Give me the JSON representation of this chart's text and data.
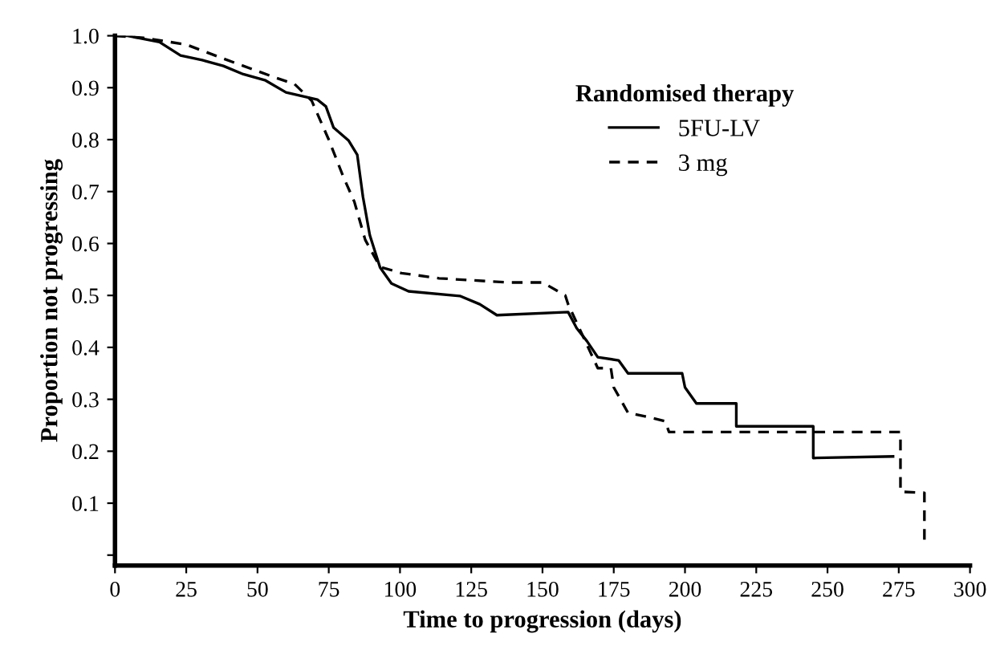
{
  "chart_data": {
    "type": "line",
    "xlabel": "Time to progression (days)",
    "ylabel": "Proportion not progressing",
    "legend_title": "Randomised therapy",
    "legend": "top right",
    "grid": false,
    "marker": "none",
    "xlim": [
      0,
      300
    ],
    "xticks": [
      0,
      25,
      50,
      75,
      100,
      125,
      150,
      175,
      200,
      225,
      250,
      275,
      300
    ],
    "ylim": [
      -0.02,
      1.0
    ],
    "yticks": [
      {
        "value": 0,
        "label": null
      },
      {
        "value": 0.1,
        "label": "0.1"
      },
      {
        "value": 0.2,
        "label": "0.2"
      },
      {
        "value": 0.3,
        "label": "0.3"
      },
      {
        "value": 0.4,
        "label": "0.4"
      },
      {
        "value": 0.5,
        "label": "0.5"
      },
      {
        "value": 0.6,
        "label": "0.6"
      },
      {
        "value": 0.7,
        "label": "0.7"
      },
      {
        "value": 0.8,
        "label": "0.8"
      },
      {
        "value": 0.9,
        "label": "0.9"
      },
      {
        "value": 1.0,
        "label": "1.0"
      }
    ],
    "series": [
      {
        "name": "5FU-LV",
        "color": "#000000",
        "line_style": "solid",
        "x": [
          0,
          4.4,
          15.6,
          23,
          30.6,
          38,
          45,
          52.8,
          60,
          71,
          74,
          76.7,
          82,
          85,
          87,
          89.4,
          93,
          97,
          103,
          121,
          128,
          134,
          159,
          162,
          165.6,
          169.4,
          176.7,
          180,
          199,
          200,
          204,
          218,
          218,
          245,
          245,
          273
        ],
        "values": [
          1.0,
          1.0,
          0.988,
          0.962,
          0.953,
          0.942,
          0.926,
          0.914,
          0.891,
          0.877,
          0.864,
          0.823,
          0.798,
          0.771,
          0.69,
          0.616,
          0.554,
          0.523,
          0.508,
          0.499,
          0.483,
          0.462,
          0.468,
          0.437,
          0.412,
          0.381,
          0.375,
          0.35,
          0.35,
          0.323,
          0.292,
          0.292,
          0.248,
          0.248,
          0.187,
          0.19
        ]
      },
      {
        "name": "3 mg",
        "color": "#000000",
        "line_style": "dashed",
        "x": [
          0,
          10,
          25,
          38,
          56,
          63,
          69,
          75,
          80,
          84,
          87.8,
          93,
          100.5,
          113.7,
          138,
          150,
          158,
          159,
          169.4,
          174,
          175,
          180,
          186,
          193,
          194.4,
          275.6,
          275.6,
          284,
          284
        ],
        "values": [
          1.0,
          0.996,
          0.983,
          0.956,
          0.92,
          0.907,
          0.875,
          0.8,
          0.73,
          0.68,
          0.607,
          0.555,
          0.543,
          0.533,
          0.525,
          0.525,
          0.5,
          0.483,
          0.36,
          0.36,
          0.323,
          0.274,
          0.267,
          0.258,
          0.237,
          0.237,
          0.122,
          0.12,
          0.02
        ]
      }
    ]
  }
}
